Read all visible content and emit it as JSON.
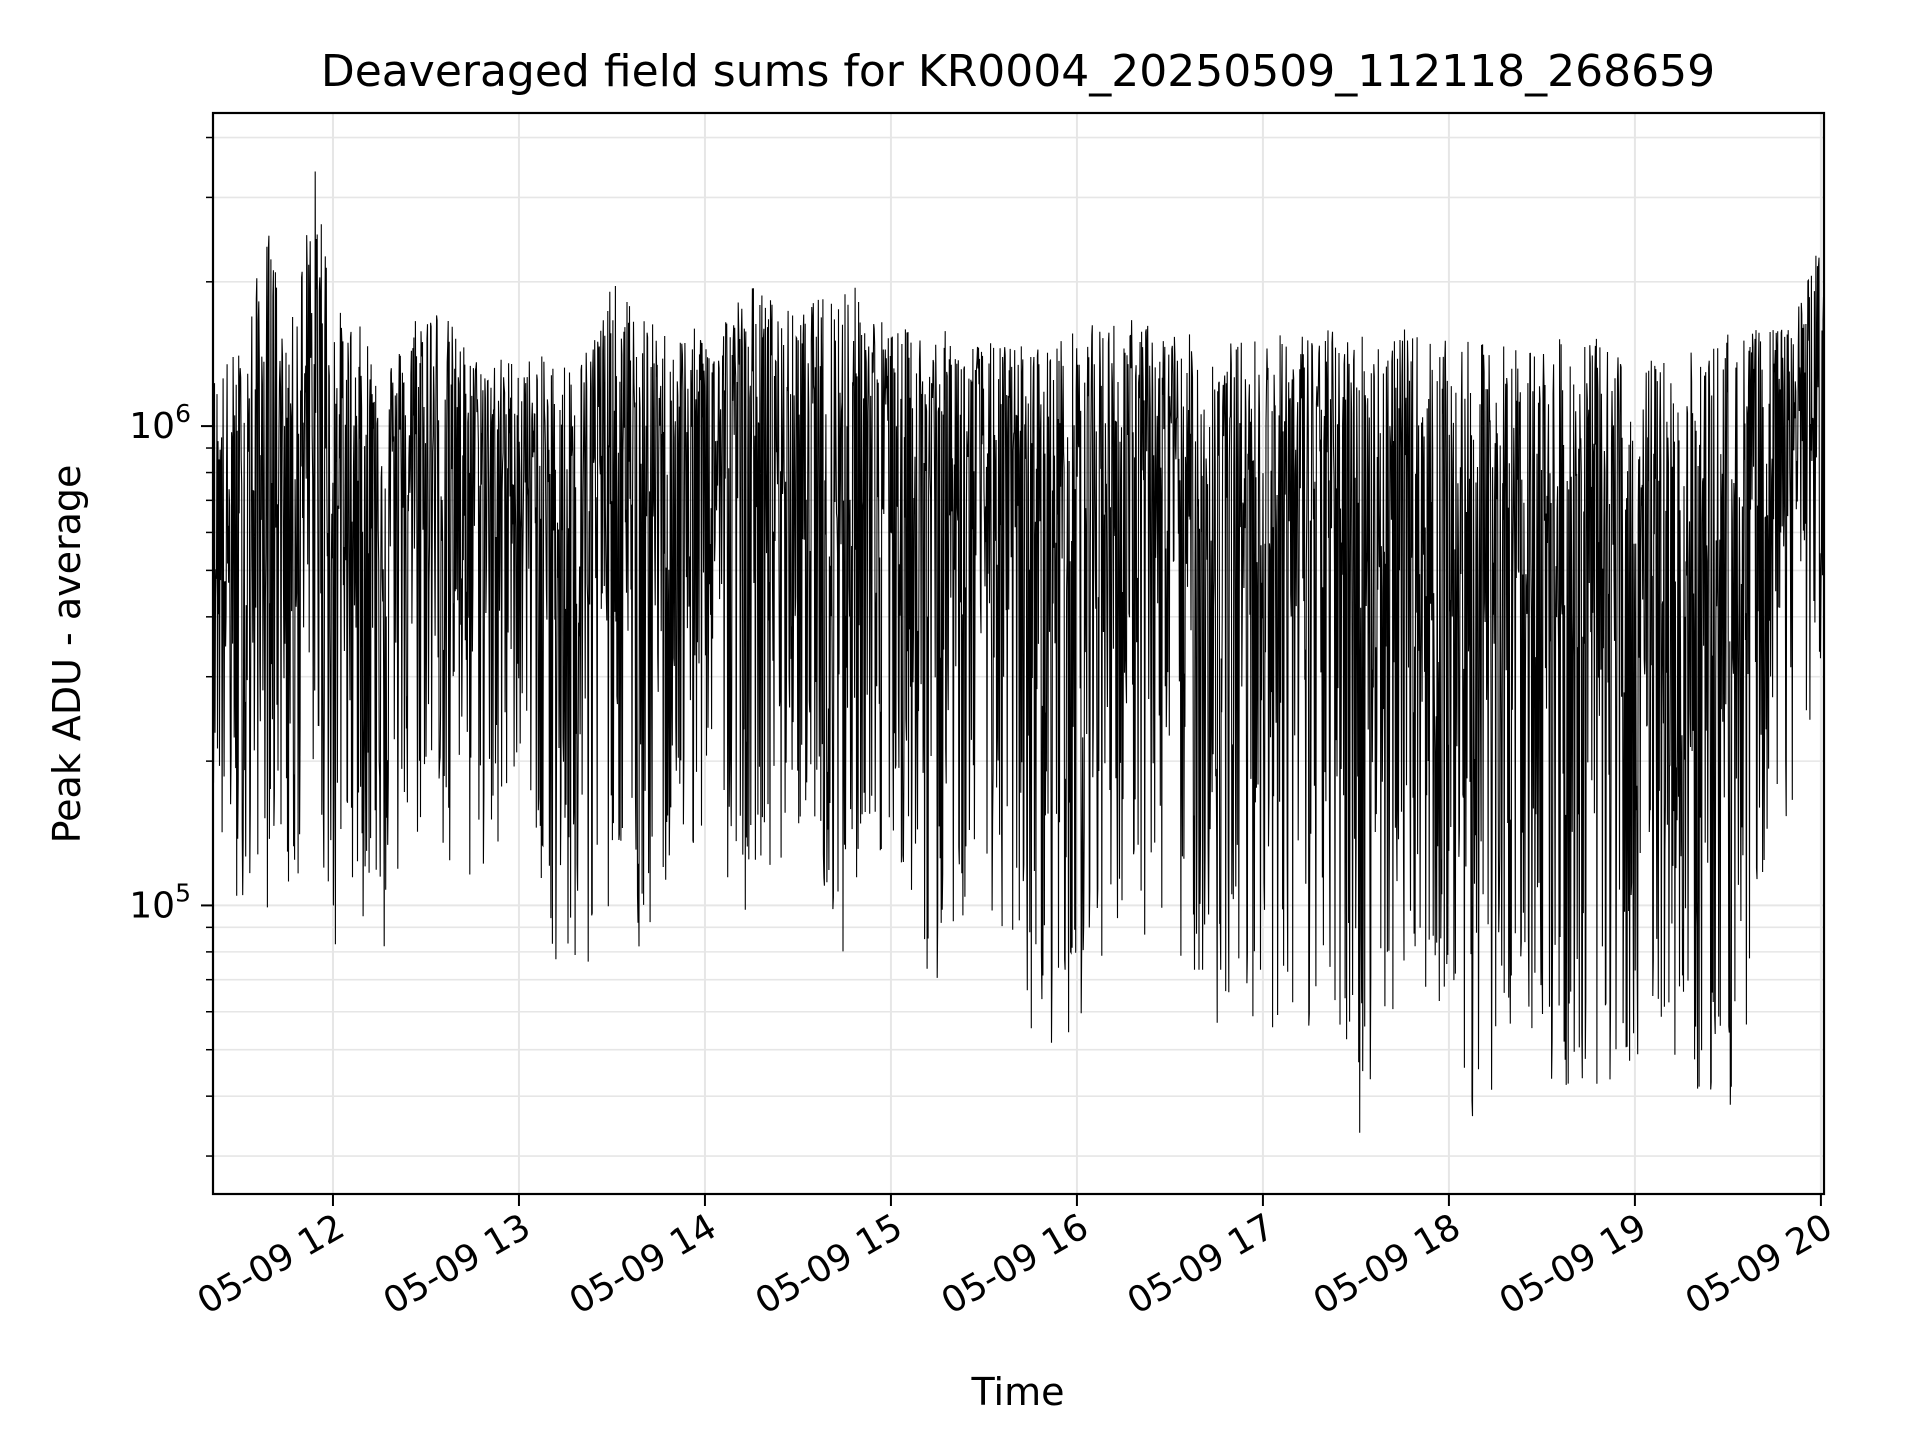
{
  "chart_data": {
    "type": "line",
    "title": "Deaveraged field sums for KR0004_20250509_112118_268659",
    "xlabel": "Time",
    "ylabel": "Peak ADU - average",
    "yscale": "log",
    "grid": true,
    "legend": "none",
    "colors": {
      "line": "#000000",
      "grid": "#e6e6e6",
      "axes": "#000000",
      "background": "#ffffff"
    },
    "xlim": [
      "2025-05-09 11:21:18",
      "2025-05-09 20:01:00"
    ],
    "ylim": [
      25000,
      4500000
    ],
    "x_ticks": [
      {
        "value": "2025-05-09 12:00",
        "label": "05-09 12"
      },
      {
        "value": "2025-05-09 13:00",
        "label": "05-09 13"
      },
      {
        "value": "2025-05-09 14:00",
        "label": "05-09 14"
      },
      {
        "value": "2025-05-09 15:00",
        "label": "05-09 15"
      },
      {
        "value": "2025-05-09 16:00",
        "label": "05-09 16"
      },
      {
        "value": "2025-05-09 17:00",
        "label": "05-09 17"
      },
      {
        "value": "2025-05-09 18:00",
        "label": "05-09 18"
      },
      {
        "value": "2025-05-09 19:00",
        "label": "05-09 19"
      },
      {
        "value": "2025-05-09 20:00",
        "label": "05-09 20"
      }
    ],
    "y_ticks": [
      {
        "value": 100000,
        "base": "10",
        "exponent": "5"
      },
      {
        "value": 1000000,
        "base": "10",
        "exponent": "6"
      }
    ],
    "series": [
      {
        "color": "#000000",
        "x": [
          "2025-05-09 11:21",
          "2025-05-09 11:30",
          "2025-05-09 11:40",
          "2025-05-09 11:45",
          "2025-05-09 11:55",
          "2025-05-09 12:00",
          "2025-05-09 12:10",
          "2025-05-09 12:20",
          "2025-05-09 12:30",
          "2025-05-09 12:45",
          "2025-05-09 13:00",
          "2025-05-09 13:15",
          "2025-05-09 13:20",
          "2025-05-09 13:30",
          "2025-05-09 13:45",
          "2025-05-09 14:00",
          "2025-05-09 14:15",
          "2025-05-09 14:30",
          "2025-05-09 14:45",
          "2025-05-09 15:00",
          "2025-05-09 15:15",
          "2025-05-09 15:30",
          "2025-05-09 15:45",
          "2025-05-09 15:50",
          "2025-05-09 16:00",
          "2025-05-09 16:15",
          "2025-05-09 16:30",
          "2025-05-09 16:45",
          "2025-05-09 17:00",
          "2025-05-09 17:15",
          "2025-05-09 17:30",
          "2025-05-09 17:45",
          "2025-05-09 18:00",
          "2025-05-09 18:10",
          "2025-05-09 18:20",
          "2025-05-09 18:30",
          "2025-05-09 18:45",
          "2025-05-09 19:00",
          "2025-05-09 19:15",
          "2025-05-09 19:30",
          "2025-05-09 19:40",
          "2025-05-09 19:50",
          "2025-05-09 20:00"
        ],
        "min": [
          150000,
          80000,
          100000,
          70000,
          150000,
          75000,
          90000,
          65000,
          150000,
          95000,
          150000,
          58000,
          70000,
          100000,
          65000,
          150000,
          80000,
          150000,
          70000,
          150000,
          60000,
          100000,
          50000,
          40000,
          55000,
          90000,
          80000,
          55000,
          55000,
          50000,
          32000,
          55000,
          50000,
          30000,
          45000,
          40000,
          42000,
          38000,
          45000,
          33000,
          80000,
          150000,
          250000
        ],
        "max": [
          1300000,
          1500000,
          2700000,
          1400000,
          3800000,
          1800000,
          1600000,
          1400000,
          2000000,
          1400000,
          1400000,
          1400000,
          1400000,
          2000000,
          1600000,
          1600000,
          2000000,
          1700000,
          2100000,
          1600000,
          1600000,
          1500000,
          1500000,
          1500000,
          1600000,
          1700000,
          1600000,
          1500000,
          1550000,
          1600000,
          1600000,
          1600000,
          1500000,
          1500000,
          1500000,
          1500000,
          1550000,
          1400000,
          1400000,
          1600000,
          1600000,
          1600000,
          2500000
        ],
        "typical": [
          600000,
          400000,
          800000,
          900000,
          800000,
          700000,
          600000,
          750000,
          700000,
          800000,
          750000,
          600000,
          700000,
          700000,
          650000,
          800000,
          850000,
          800000,
          750000,
          750000,
          700000,
          650000,
          600000,
          550000,
          650000,
          700000,
          650000,
          600000,
          650000,
          650000,
          600000,
          500000,
          450000,
          400000,
          500000,
          550000,
          400000,
          350000,
          300000,
          350000,
          600000,
          900000,
          1100000
        ]
      }
    ]
  }
}
